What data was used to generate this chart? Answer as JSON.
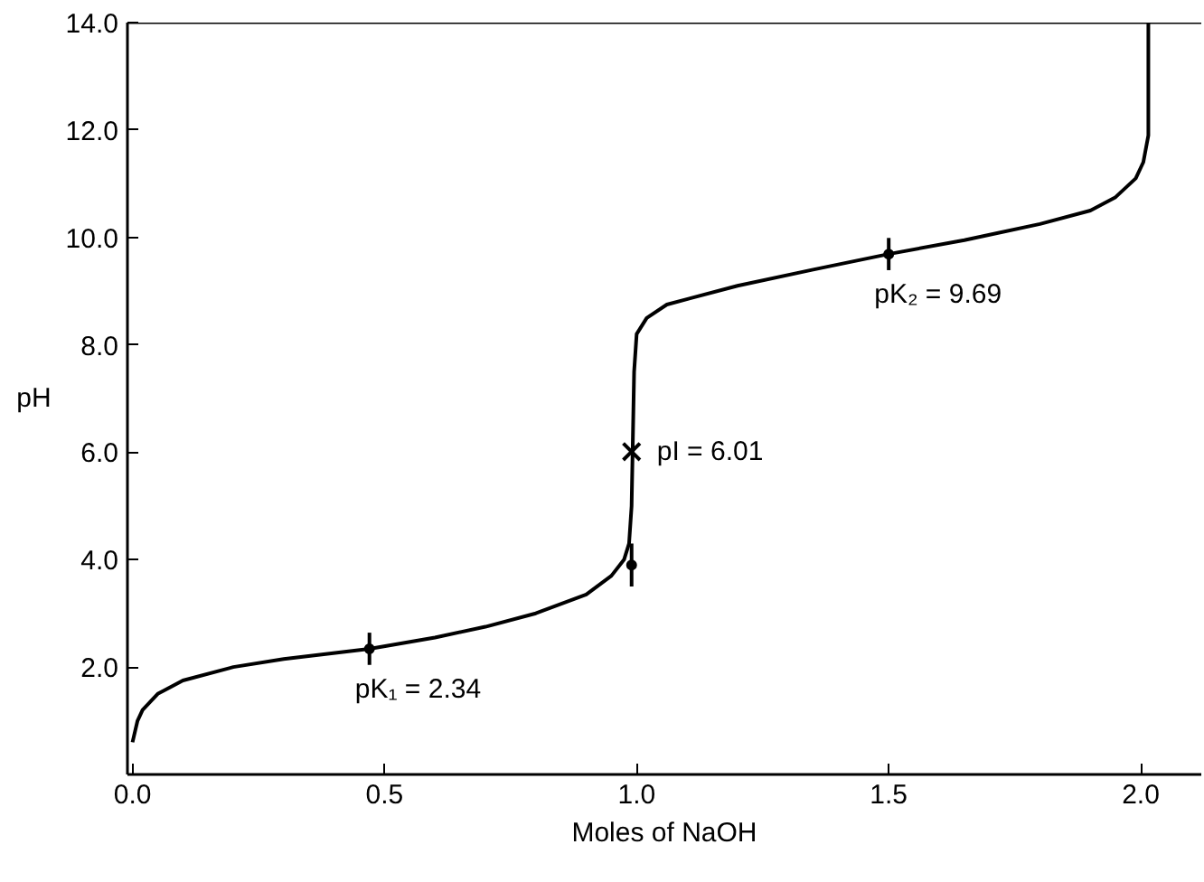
{
  "chart_data": {
    "type": "line",
    "xlabel": "Moles of NaOH",
    "ylabel": "pH",
    "xlim": [
      -0.01,
      2.12
    ],
    "ylim": [
      0,
      14
    ],
    "xticks": [
      {
        "value": 0,
        "label": "0.0"
      },
      {
        "value": 0.5,
        "label": "0.5"
      },
      {
        "value": 1,
        "label": "1.0"
      },
      {
        "value": 1.5,
        "label": "1.5"
      },
      {
        "value": 2,
        "label": "2.0"
      }
    ],
    "yticks": [
      {
        "value": 2,
        "label": "2.0"
      },
      {
        "value": 4,
        "label": "4.0"
      },
      {
        "value": 6,
        "label": "6.0"
      },
      {
        "value": 8,
        "label": "8.0"
      },
      {
        "value": 10,
        "label": "10.0"
      },
      {
        "value": 12,
        "label": "12.0"
      },
      {
        "value": 14,
        "label": "14.0"
      }
    ],
    "series": [
      {
        "color": "#000000",
        "x": [
          0,
          0.01,
          0.02,
          0.05,
          0.1,
          0.2,
          0.3,
          0.47,
          0.6,
          0.7,
          0.8,
          0.9,
          0.95,
          0.975,
          0.985,
          0.99,
          0.992,
          0.995,
          1.0,
          1.02,
          1.06,
          1.2,
          1.35,
          1.5,
          1.65,
          1.8,
          1.9,
          1.95,
          1.99,
          2.005,
          2.015,
          2.015
        ],
        "values": [
          0.6,
          1.0,
          1.2,
          1.5,
          1.75,
          2.0,
          2.15,
          2.34,
          2.55,
          2.75,
          3.0,
          3.35,
          3.7,
          4.0,
          4.3,
          5.0,
          6.0,
          7.5,
          8.2,
          8.5,
          8.75,
          9.1,
          9.4,
          9.69,
          9.95,
          10.25,
          10.5,
          10.75,
          11.1,
          11.4,
          11.9,
          14.0
        ]
      },
      {
        "type": "scatter",
        "marker": "cross",
        "color": "#000000",
        "x": [
          0.99
        ],
        "values": [
          6.01
        ]
      },
      {
        "type": "scatter",
        "marker": "circle",
        "color": "#000000",
        "x": [
          0.47,
          1.5,
          0.99
        ],
        "values": [
          2.34,
          9.69,
          3.9
        ],
        "errors": [
          0.3,
          0.3,
          0.4
        ]
      }
    ],
    "annotations": [
      {
        "text": "pK₁ = 2.34",
        "x": 0.47,
        "y": 2.34
      },
      {
        "text": "pI = 6.01",
        "x": 0.99,
        "y": 6.01
      },
      {
        "text": "pK₂ = 9.69",
        "x": 1.5,
        "y": 9.69
      }
    ],
    "grid": false
  }
}
